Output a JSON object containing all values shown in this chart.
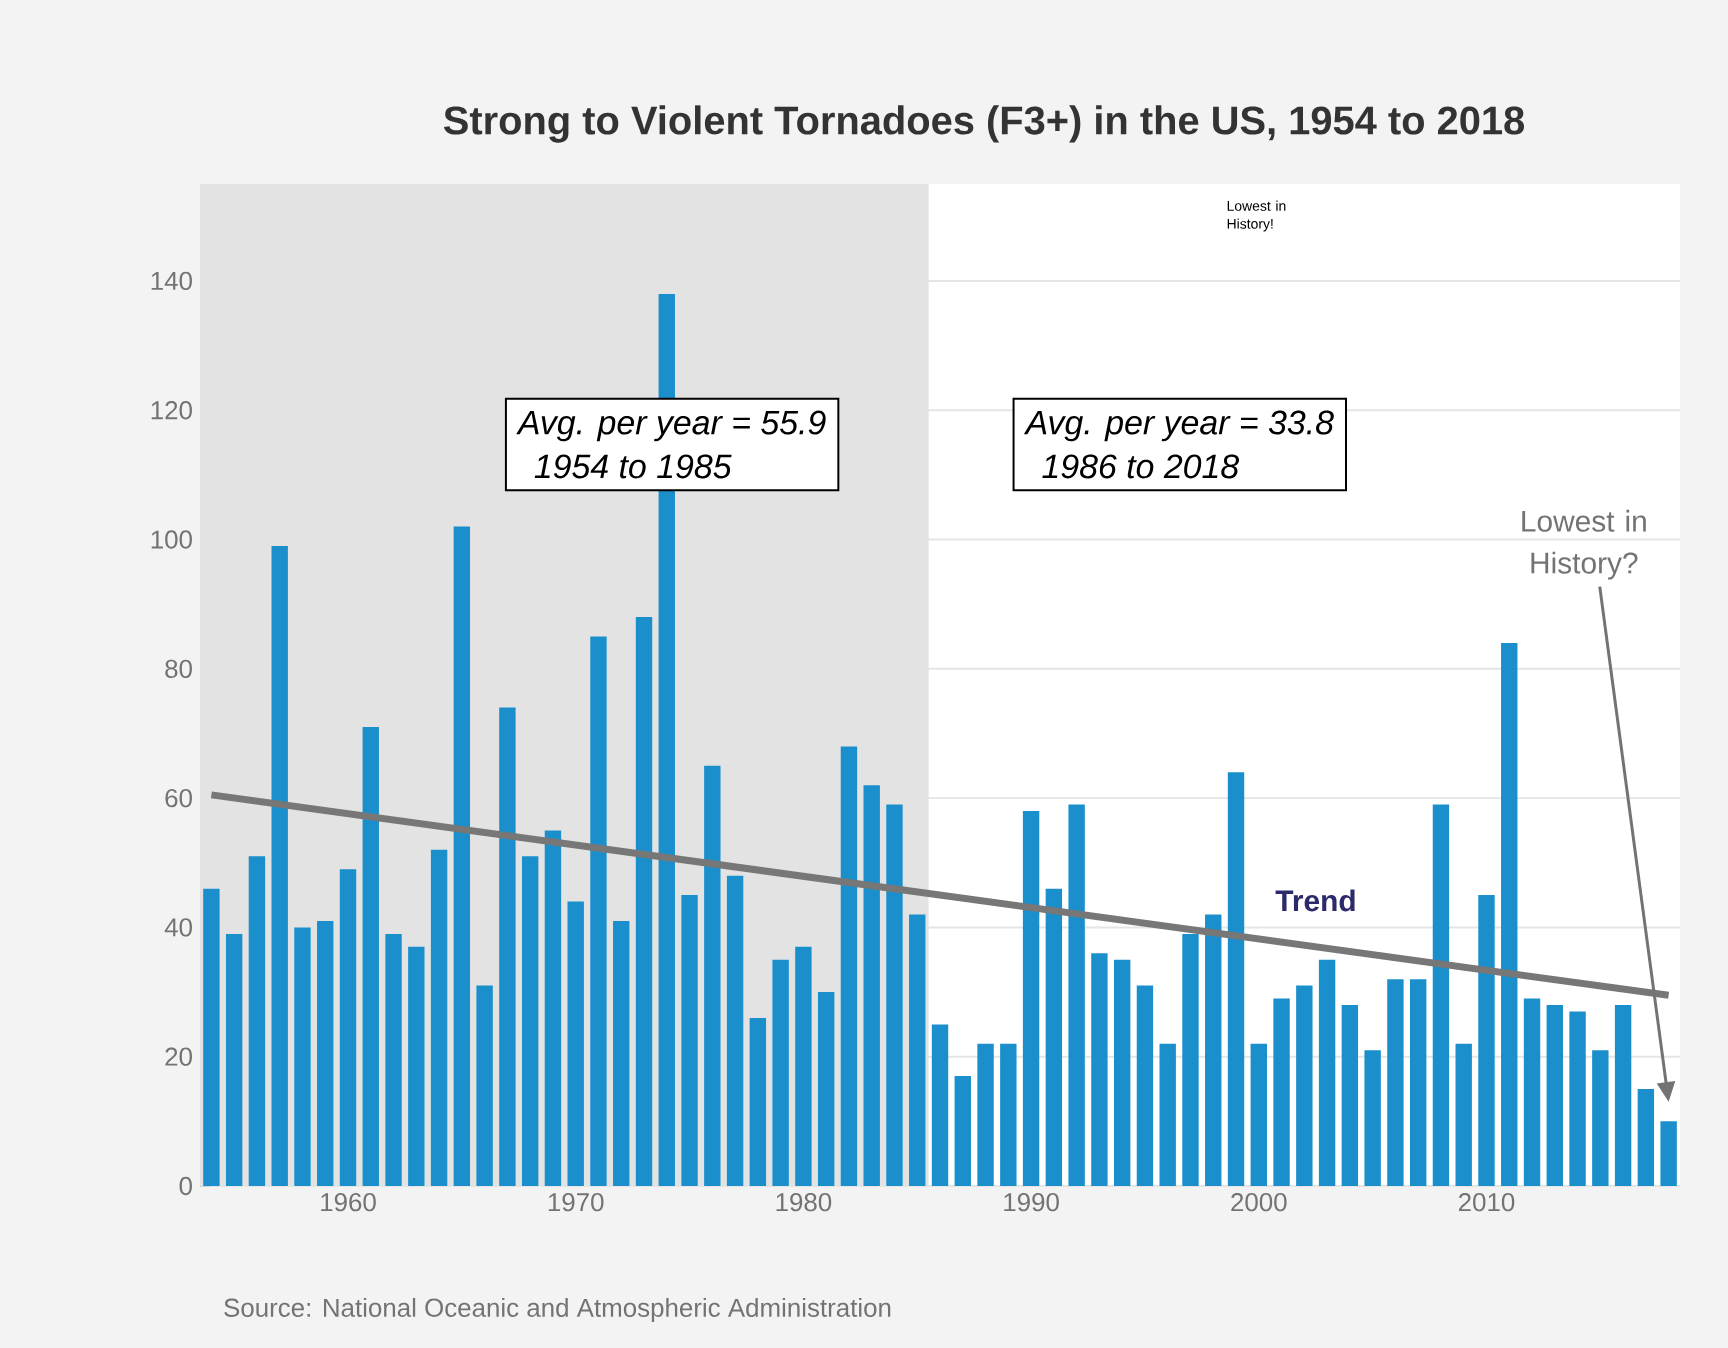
{
  "chart_data": {
    "type": "bar",
    "title": "Strong to Violent Tornadoes (F3+) in the US, 1954 to 2018",
    "x": [
      1954,
      1955,
      1956,
      1957,
      1958,
      1959,
      1960,
      1961,
      1962,
      1963,
      1964,
      1965,
      1966,
      1967,
      1968,
      1969,
      1970,
      1971,
      1972,
      1973,
      1974,
      1975,
      1976,
      1977,
      1978,
      1979,
      1980,
      1981,
      1982,
      1983,
      1984,
      1985,
      1986,
      1987,
      1988,
      1989,
      1990,
      1991,
      1992,
      1993,
      1994,
      1995,
      1996,
      1997,
      1998,
      1999,
      2000,
      2001,
      2002,
      2003,
      2004,
      2005,
      2006,
      2007,
      2008,
      2009,
      2010,
      2011,
      2012,
      2013,
      2014,
      2015,
      2016,
      2017,
      2018
    ],
    "series": [
      {
        "color": "#1a8fcc",
        "values": [
          46,
          39,
          51,
          99,
          40,
          41,
          49,
          71,
          39,
          37,
          52,
          102,
          31,
          74,
          51,
          55,
          44,
          85,
          41,
          88,
          138,
          45,
          65,
          48,
          26,
          35,
          37,
          30,
          68,
          62,
          59,
          42,
          25,
          17,
          22,
          22,
          58,
          46,
          59,
          36,
          35,
          31,
          22,
          39,
          42,
          64,
          22,
          29,
          31,
          35,
          28,
          21,
          32,
          32,
          59,
          22,
          45,
          84,
          29,
          28,
          27,
          21,
          28,
          15,
          10
        ]
      },
      {
        "type": "line",
        "name": "Trend",
        "color": "#777777",
        "x": [
          1954,
          2018
        ],
        "values": [
          60.5,
          29.5
        ]
      }
    ],
    "xlim": [
      1953.5,
      2018.5
    ],
    "xticks": [
      1960,
      1970,
      1980,
      1990,
      2000,
      2010
    ],
    "ylim": [
      0,
      155
    ],
    "yticks": [
      0,
      20,
      40,
      60,
      80,
      100,
      120,
      140
    ],
    "grid": "y",
    "bands": [
      {
        "axis": "x",
        "from": 1953.5,
        "to": 1985.5,
        "color": "#e3e3e3"
      }
    ],
    "annotations": [
      "Avg. per year = 55.9",
      "1954 to 1985",
      "Avg. per year = 33.8",
      "1986 to 2018",
      "Lowest in History!",
      "Lowest in History?",
      "Source: National Oceanic and Atmospheric Administration"
    ]
  }
}
